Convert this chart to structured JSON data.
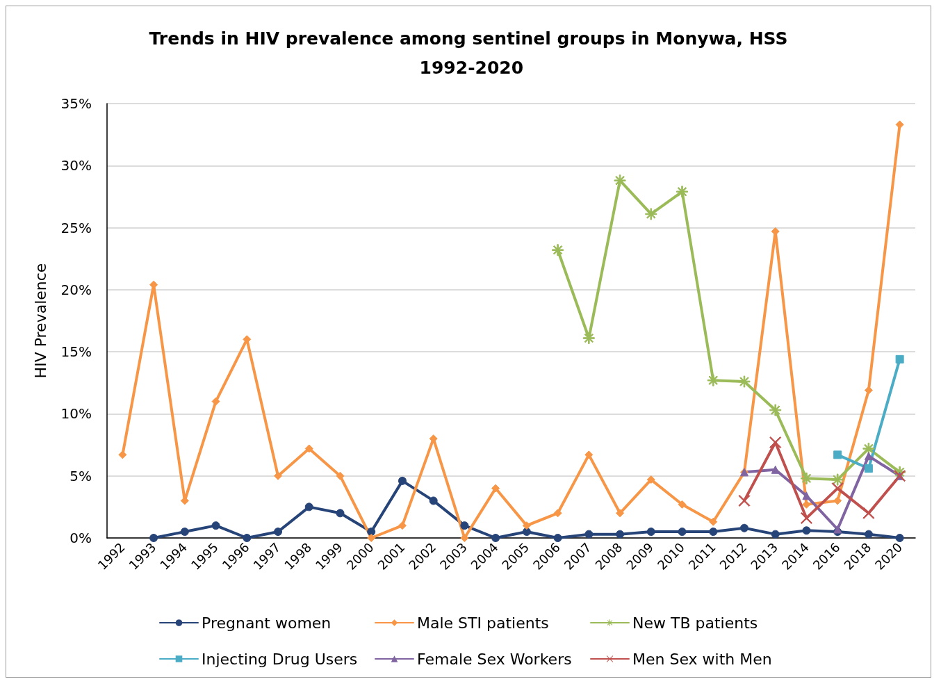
{
  "chart_data": {
    "type": "line",
    "title": "Trends in HIV prevalence among sentinel groups in Monywa, HSS 1992-2020",
    "ylabel": "HIV Prevalence",
    "categories": [
      "1992",
      "1993",
      "1994",
      "1995",
      "1996",
      "1997",
      "1998",
      "1999",
      "2000",
      "2001",
      "2002",
      "2003",
      "2004",
      "2005",
      "2006",
      "2007",
      "2008",
      "2009",
      "2010",
      "2011",
      "2012",
      "2013",
      "2014",
      "2016",
      "2018",
      "2020"
    ],
    "ylim": [
      0,
      35
    ],
    "yticks": [
      {
        "value": 0,
        "label": "0%"
      },
      {
        "value": 5,
        "label": "5%"
      },
      {
        "value": 10,
        "label": "10%"
      },
      {
        "value": 15,
        "label": "15%"
      },
      {
        "value": 20,
        "label": "20%"
      },
      {
        "value": 25,
        "label": "25%"
      },
      {
        "value": 30,
        "label": "30%"
      },
      {
        "value": 35,
        "label": "35%"
      }
    ],
    "grid": "y",
    "legend": "bottom",
    "line_style": "solid",
    "series": [
      {
        "name": "Pregnant women",
        "color": "#264478",
        "marker": "circle",
        "values": [
          null,
          0,
          0.5,
          1.0,
          0,
          0.5,
          2.5,
          2.0,
          0.5,
          4.6,
          3.0,
          1.0,
          0,
          0.5,
          0,
          0.3,
          0.3,
          0.5,
          0.5,
          0.5,
          0.8,
          0.3,
          0.6,
          0.5,
          0.3,
          0
        ]
      },
      {
        "name": "Male STI patients",
        "color": "#f79646",
        "marker": "diamond",
        "values": [
          6.7,
          20.4,
          3.0,
          11.0,
          16.0,
          5.0,
          7.2,
          5.0,
          0,
          1.0,
          8.0,
          0,
          4.0,
          1.0,
          2.0,
          6.7,
          2.0,
          4.7,
          2.7,
          1.3,
          5.3,
          24.7,
          2.7,
          3.0,
          11.9,
          33.3
        ]
      },
      {
        "name": "New TB patients",
        "color": "#9bbb59",
        "marker": "star",
        "values": [
          null,
          null,
          null,
          null,
          null,
          null,
          null,
          null,
          null,
          null,
          null,
          null,
          null,
          null,
          23.2,
          16.1,
          28.8,
          26.1,
          27.9,
          12.7,
          12.6,
          10.3,
          4.8,
          4.7,
          7.2,
          5.3
        ]
      },
      {
        "name": "Injecting Drug Users",
        "color": "#4bacc6",
        "marker": "square",
        "values": [
          null,
          null,
          null,
          null,
          null,
          null,
          null,
          null,
          null,
          null,
          null,
          null,
          null,
          null,
          null,
          null,
          null,
          null,
          null,
          null,
          null,
          null,
          null,
          6.7,
          5.6,
          14.4
        ]
      },
      {
        "name": "Female Sex Workers",
        "color": "#8064a2",
        "marker": "triangle",
        "values": [
          null,
          null,
          null,
          null,
          null,
          null,
          null,
          null,
          null,
          null,
          null,
          null,
          null,
          null,
          null,
          null,
          null,
          null,
          null,
          null,
          5.3,
          5.5,
          3.4,
          0.7,
          6.6,
          5.0
        ]
      },
      {
        "name": "Men Sex with Men",
        "color": "#c0504d",
        "marker": "cross",
        "values": [
          null,
          null,
          null,
          null,
          null,
          null,
          null,
          null,
          null,
          null,
          null,
          null,
          null,
          null,
          null,
          null,
          null,
          null,
          null,
          null,
          3.0,
          7.7,
          1.6,
          4.0,
          2.0,
          5.0
        ]
      }
    ]
  }
}
